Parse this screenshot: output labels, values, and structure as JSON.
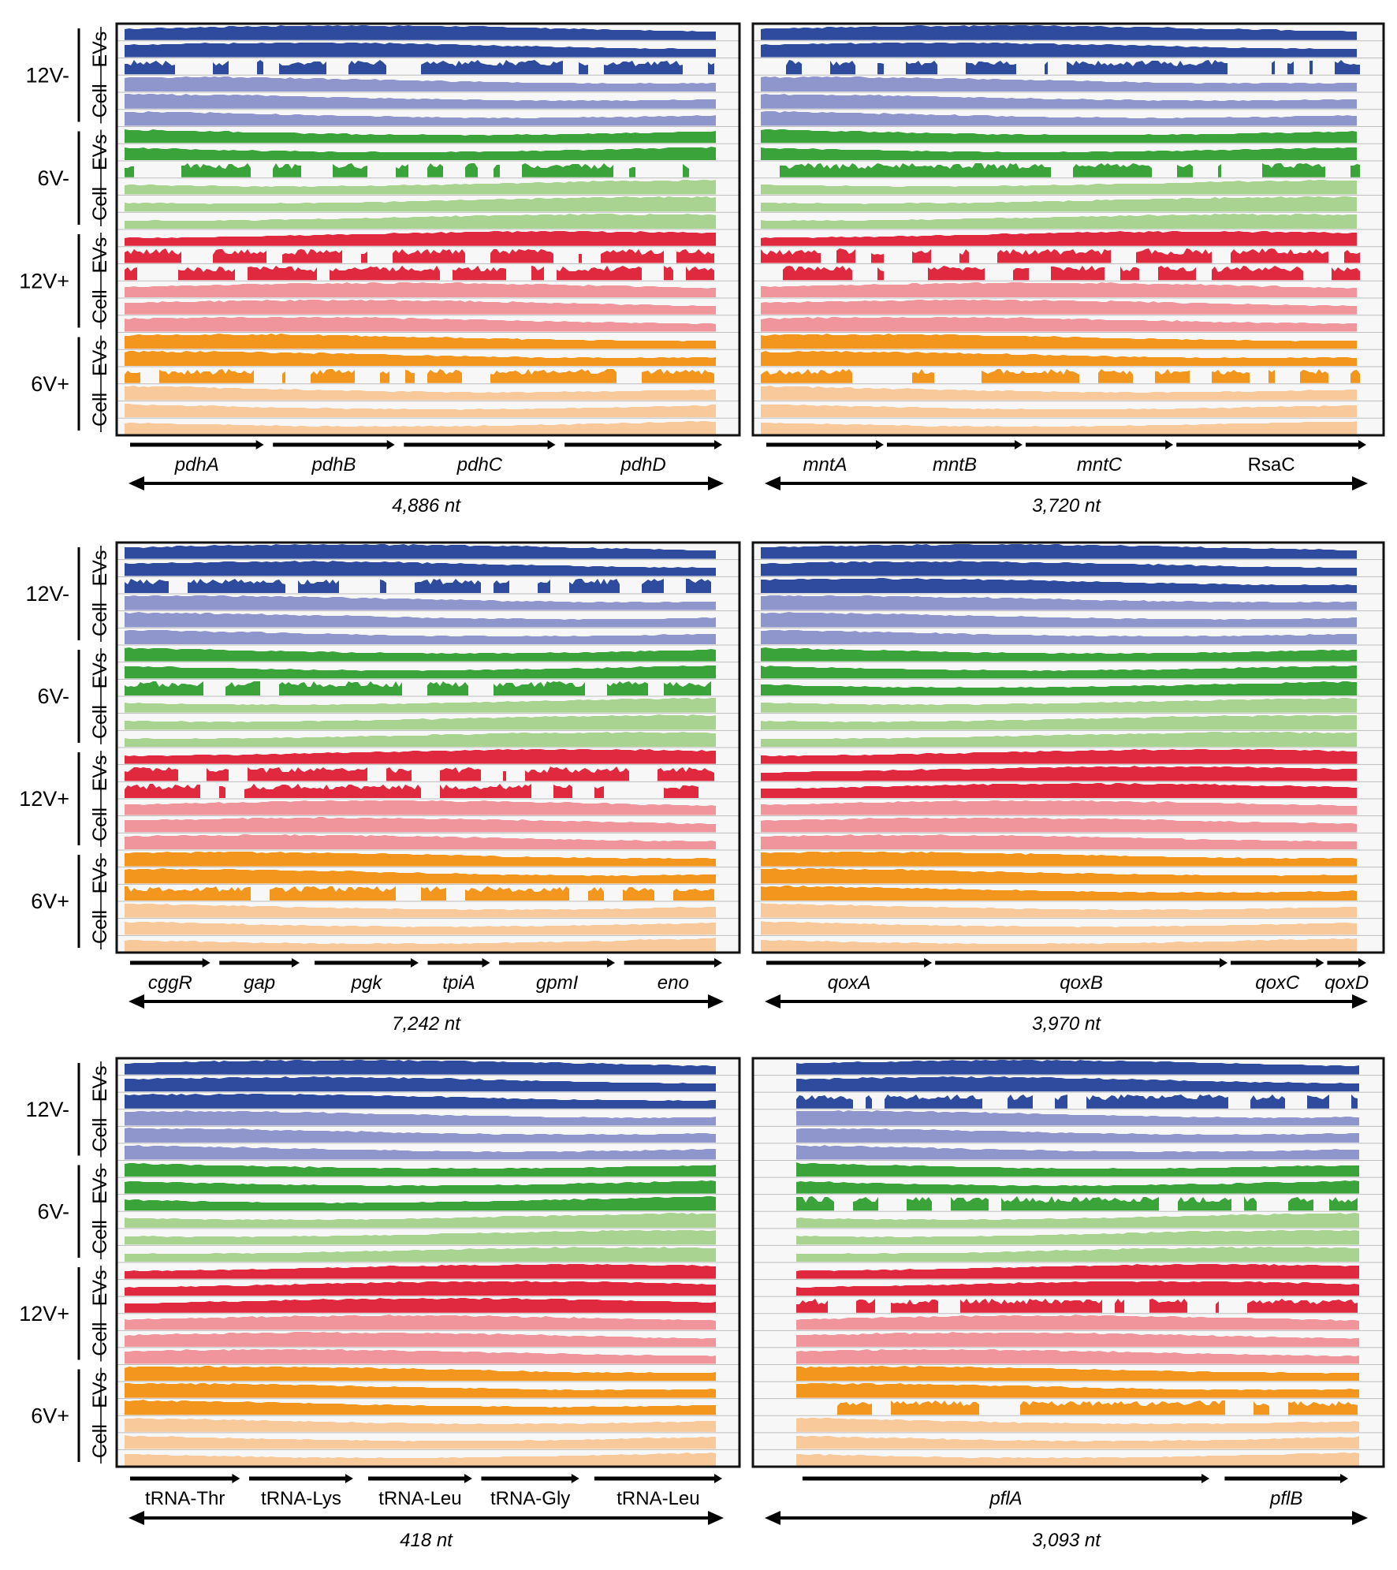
{
  "figure": {
    "colors": {
      "12V-": {
        "ev": "#2e4b9e",
        "cell": "#8e96cc"
      },
      "6V-": {
        "ev": "#3aa43a",
        "cell": "#a9d391"
      },
      "12V+": {
        "ev": "#e0283f",
        "cell": "#f0959c"
      },
      "6V+": {
        "ev": "#f2961e",
        "cell": "#f8c99a"
      },
      "frame": "#111111",
      "track_line": "#bdbdbd",
      "track_bg": "#f7f7f7"
    },
    "conditions": [
      {
        "label": "12V-",
        "key": "12V-",
        "sub": {
          "ev": "EVs",
          "cell": "Cell"
        }
      },
      {
        "label": "6V-",
        "key": "6V-",
        "sub": {
          "ev": "EVs",
          "cell": "Cell"
        }
      },
      {
        "label": "12V+",
        "key": "12V+",
        "sub": {
          "ev": "EVs",
          "cell": "Cell"
        }
      },
      {
        "label": "6V+",
        "key": "6V+",
        "sub": {
          "ev": "EVs",
          "cell": "Cell"
        }
      }
    ],
    "track_order": [
      "ev",
      "ev",
      "ev",
      "cell",
      "cell",
      "cell"
    ],
    "panels": [
      {
        "id": "pdh",
        "length_label": "4,886 nt",
        "length_nt": 4886,
        "genes": [
          {
            "name": "pdhA",
            "italic": true,
            "start": 0.0,
            "end": 0.23
          },
          {
            "name": "pdhB",
            "italic": true,
            "start": 0.24,
            "end": 0.45
          },
          {
            "name": "pdhC",
            "italic": true,
            "start": 0.46,
            "end": 0.72
          },
          {
            "name": "pdhD",
            "italic": true,
            "start": 0.73,
            "end": 1.0
          }
        ]
      },
      {
        "id": "mnt",
        "length_label": "3,720 nt",
        "length_nt": 3720,
        "genes": [
          {
            "name": "mntA",
            "italic": true,
            "start": 0.0,
            "end": 0.2
          },
          {
            "name": "mntB",
            "italic": true,
            "start": 0.2,
            "end": 0.43
          },
          {
            "name": "mntC",
            "italic": true,
            "start": 0.43,
            "end": 0.68
          },
          {
            "name": "RsaC",
            "italic": false,
            "start": 0.68,
            "end": 1.0
          }
        ]
      },
      {
        "id": "gap",
        "length_label": "7,242 nt",
        "length_nt": 7242,
        "genes": [
          {
            "name": "cggR",
            "italic": true,
            "start": 0.0,
            "end": 0.14
          },
          {
            "name": "gap",
            "italic": true,
            "start": 0.15,
            "end": 0.29
          },
          {
            "name": "pgk",
            "italic": true,
            "start": 0.31,
            "end": 0.49
          },
          {
            "name": "tpiA",
            "italic": true,
            "start": 0.5,
            "end": 0.61
          },
          {
            "name": "gpmI",
            "italic": true,
            "start": 0.62,
            "end": 0.82
          },
          {
            "name": "eno",
            "italic": true,
            "start": 0.83,
            "end": 1.0
          }
        ]
      },
      {
        "id": "qox",
        "length_label": "3,970 nt",
        "length_nt": 3970,
        "genes": [
          {
            "name": "qoxA",
            "italic": true,
            "start": 0.0,
            "end": 0.28
          },
          {
            "name": "qoxB",
            "italic": true,
            "start": 0.28,
            "end": 0.77
          },
          {
            "name": "qoxC",
            "italic": true,
            "start": 0.77,
            "end": 0.93
          },
          {
            "name": "qoxD",
            "italic": true,
            "start": 0.93,
            "end": 1.0
          }
        ]
      },
      {
        "id": "trna",
        "length_label": "418 nt",
        "length_nt": 418,
        "genes": [
          {
            "name": "tRNA-Thr",
            "italic": false,
            "start": 0.0,
            "end": 0.19
          },
          {
            "name": "tRNA-Lys",
            "italic": false,
            "start": 0.2,
            "end": 0.38
          },
          {
            "name": "tRNA-Leu",
            "italic": false,
            "start": 0.4,
            "end": 0.58
          },
          {
            "name": "tRNA-Gly",
            "italic": false,
            "start": 0.59,
            "end": 0.76
          },
          {
            "name": "tRNA-Leu",
            "italic": false,
            "start": 0.78,
            "end": 1.0
          }
        ]
      },
      {
        "id": "pfl",
        "length_label": "3,093 nt",
        "length_nt": 3093,
        "genes": [
          {
            "name": "pflA",
            "italic": true,
            "start": 0.06,
            "end": 0.74
          },
          {
            "name": "pflB",
            "italic": true,
            "start": 0.76,
            "end": 0.97
          }
        ]
      }
    ]
  }
}
